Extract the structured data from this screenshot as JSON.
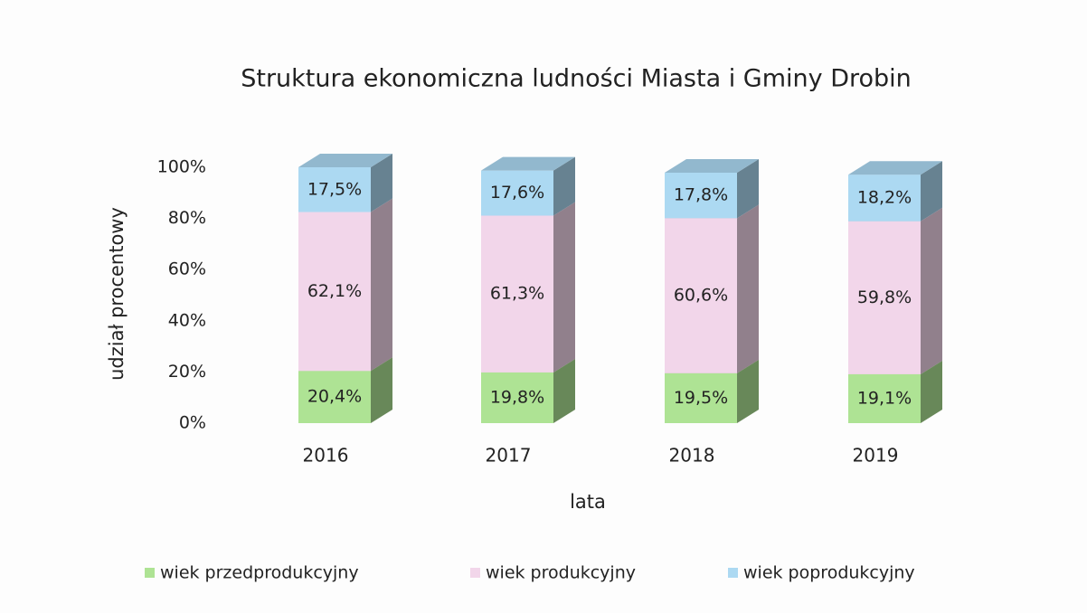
{
  "chart_data": {
    "type": "bar3d_stacked",
    "title": "Struktura ekonomiczna ludności Miasta i Gminy Drobin",
    "x_label": "lata",
    "y_label": "udział procentowy",
    "categories": [
      "2016",
      "2017",
      "2018",
      "2019"
    ],
    "series": [
      {
        "name": "wiek przedprodukcyjny",
        "color": "#aee394",
        "values": [
          20.4,
          19.8,
          19.5,
          19.1
        ],
        "value_labels": [
          "20,4%",
          "19,8%",
          "19,5%",
          "19,1%"
        ]
      },
      {
        "name": "wiek produkcyjny",
        "color": "#f2d6ea",
        "values": [
          62.1,
          61.3,
          60.6,
          59.8
        ],
        "value_labels": [
          "62,1%",
          "61,3%",
          "60,6%",
          "59,8%"
        ]
      },
      {
        "name": "wiek poprodukcyjny",
        "color": "#acd9f2",
        "values": [
          17.5,
          17.6,
          17.8,
          18.2
        ],
        "value_labels": [
          "17,5%",
          "17,6%",
          "17,8%",
          "18,2%"
        ]
      }
    ],
    "ylim": [
      0,
      100
    ],
    "yticks": [
      {
        "value": 0,
        "label": "0%"
      },
      {
        "value": 20,
        "label": "20%"
      },
      {
        "value": 40,
        "label": "40%"
      },
      {
        "value": 60,
        "label": "60%"
      },
      {
        "value": 80,
        "label": "80%"
      },
      {
        "value": 100,
        "label": "100%"
      }
    ],
    "grid": false,
    "legend": "bottom"
  }
}
